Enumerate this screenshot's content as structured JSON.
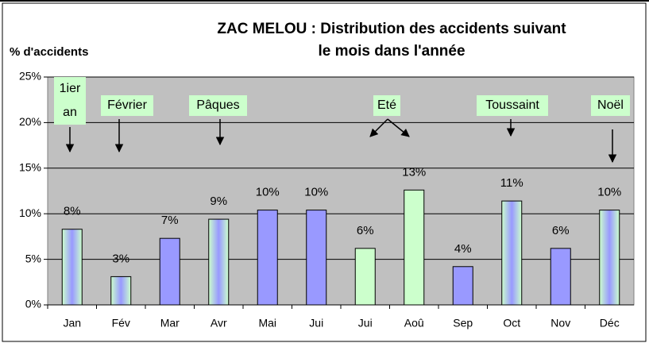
{
  "chart_data": {
    "type": "bar",
    "title": [
      "ZAC MELOU : Distribution des accidents suivant",
      "le mois dans l'année"
    ],
    "y_label": "% d'accidents",
    "categories": [
      "Jan",
      "Fév",
      "Mar",
      "Avr",
      "Mai",
      "Jui",
      "Jui",
      "Aoû",
      "Sep",
      "Oct",
      "Nov",
      "Déc"
    ],
    "values": [
      8.3,
      3.1,
      7.3,
      9.4,
      10.4,
      10.4,
      6.2,
      12.6,
      4.2,
      11.4,
      6.2,
      10.4
    ],
    "value_labels": [
      "8%",
      "3%",
      "7%",
      "9%",
      "10%",
      "10%",
      "6%",
      "13%",
      "4%",
      "11%",
      "6%",
      "10%"
    ],
    "fills": [
      "gradient",
      "gradient",
      "#9999ff",
      "gradient",
      "#9999ff",
      "#9999ff",
      "#ccffcc",
      "#ccffcc",
      "#9999ff",
      "gradient",
      "#9999ff",
      "gradient"
    ],
    "gradient_colors": [
      "#ccffcc",
      "#9999ff"
    ],
    "ylim": [
      0,
      25
    ],
    "yticks": [
      {
        "value": 0,
        "label": "0%"
      },
      {
        "value": 5,
        "label": "5%"
      },
      {
        "value": 10,
        "label": "10%"
      },
      {
        "value": 15,
        "label": "15%"
      },
      {
        "value": 20,
        "label": "20%"
      },
      {
        "value": 25,
        "label": "25%"
      }
    ],
    "grid": true,
    "plot_background": "#c0c0c0",
    "annotations": [
      {
        "lines": [
          "1ier",
          "an"
        ]
      },
      {
        "lines": [
          "Février"
        ]
      },
      {
        "lines": [
          "Pâques"
        ]
      },
      {
        "lines": [
          "Eté"
        ]
      },
      {
        "lines": [
          "Toussaint"
        ]
      },
      {
        "lines": [
          "Noël"
        ]
      }
    ]
  }
}
